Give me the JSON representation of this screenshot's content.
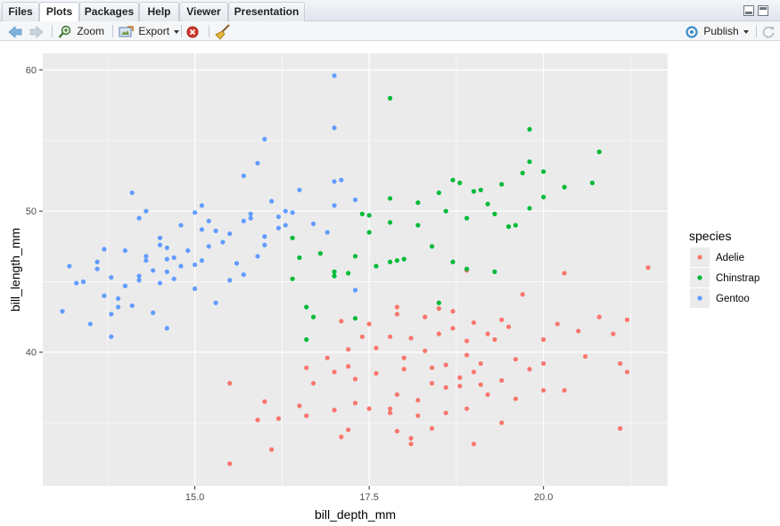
{
  "tabs": [
    {
      "label": "Files",
      "active": false
    },
    {
      "label": "Plots",
      "active": true
    },
    {
      "label": "Packages",
      "active": false
    },
    {
      "label": "Help",
      "active": false
    },
    {
      "label": "Viewer",
      "active": false
    },
    {
      "label": "Presentation",
      "active": false
    }
  ],
  "toolbar": {
    "back_icon": "arrow-left-icon",
    "forward_icon": "arrow-right-icon",
    "zoom_label": "Zoom",
    "export_label": "Export",
    "remove_icon": "remove-plot-icon",
    "clear_icon": "broom-icon",
    "publish_label": "Publish",
    "refresh_icon": "refresh-icon"
  },
  "colors": {
    "panel_bg": "#ebebeb",
    "Adelie": "#f8766d",
    "Chinstrap": "#00ba38",
    "Gentoo": "#619cff"
  },
  "chart_data": {
    "type": "scatter",
    "xlabel": "bill_depth_mm",
    "ylabel": "bill_length_mm",
    "xlim": [
      13.1,
      21.5
    ],
    "ylim": [
      32.1,
      59.6
    ],
    "xticks": [
      15.0,
      17.5,
      20.0
    ],
    "xtick_labels": [
      "15.0",
      "17.5",
      "20.0"
    ],
    "yticks": [
      40,
      50,
      60
    ],
    "ytick_labels": [
      "40",
      "50",
      "60"
    ],
    "grid": true,
    "legend": {
      "title": "species",
      "placement": "right"
    },
    "series": [
      {
        "name": "Adelie",
        "points": [
          [
            15.5,
            32.1
          ],
          [
            16.1,
            33.1
          ],
          [
            17.2,
            34.5
          ],
          [
            17.1,
            34.0
          ],
          [
            18.1,
            33.5
          ],
          [
            19.0,
            33.5
          ],
          [
            17.9,
            34.4
          ],
          [
            18.4,
            34.6
          ],
          [
            18.1,
            33.9
          ],
          [
            16.2,
            35.3
          ],
          [
            15.9,
            35.2
          ],
          [
            16.6,
            35.5
          ],
          [
            17.0,
            35.9
          ],
          [
            17.3,
            36.4
          ],
          [
            17.5,
            36.0
          ],
          [
            17.8,
            35.7
          ],
          [
            18.2,
            35.5
          ],
          [
            18.6,
            35.7
          ],
          [
            18.9,
            36.0
          ],
          [
            19.4,
            35.0
          ],
          [
            16.0,
            36.5
          ],
          [
            16.5,
            36.2
          ],
          [
            17.8,
            36.0
          ],
          [
            17.9,
            37.0
          ],
          [
            18.2,
            36.6
          ],
          [
            18.6,
            37.5
          ],
          [
            19.1,
            37.7
          ],
          [
            19.6,
            36.7
          ],
          [
            20.0,
            37.3
          ],
          [
            21.1,
            34.6
          ],
          [
            15.5,
            37.8
          ],
          [
            16.7,
            37.8
          ],
          [
            17.0,
            38.6
          ],
          [
            17.3,
            38.1
          ],
          [
            17.6,
            38.5
          ],
          [
            18.0,
            38.8
          ],
          [
            18.4,
            37.8
          ],
          [
            18.8,
            38.2
          ],
          [
            19.0,
            38.6
          ],
          [
            19.4,
            38.0
          ],
          [
            19.8,
            38.8
          ],
          [
            20.3,
            37.3
          ],
          [
            21.2,
            38.6
          ],
          [
            16.6,
            38.9
          ],
          [
            16.9,
            39.6
          ],
          [
            17.2,
            40.2
          ],
          [
            17.6,
            40.3
          ],
          [
            18.0,
            39.6
          ],
          [
            18.3,
            40.1
          ],
          [
            18.6,
            39.1
          ],
          [
            18.9,
            39.8
          ],
          [
            19.1,
            39.2
          ],
          [
            19.3,
            40.9
          ],
          [
            19.6,
            39.5
          ],
          [
            20.0,
            39.2
          ],
          [
            20.6,
            39.7
          ],
          [
            21.1,
            39.2
          ],
          [
            17.4,
            41.1
          ],
          [
            17.8,
            41.1
          ],
          [
            18.1,
            41.0
          ],
          [
            18.5,
            41.3
          ],
          [
            18.9,
            40.8
          ],
          [
            19.2,
            41.3
          ],
          [
            19.5,
            41.8
          ],
          [
            20.0,
            40.9
          ],
          [
            20.5,
            41.5
          ],
          [
            21.0,
            41.3
          ],
          [
            17.1,
            42.2
          ],
          [
            17.5,
            42.0
          ],
          [
            17.9,
            42.7
          ],
          [
            18.3,
            42.5
          ],
          [
            18.7,
            42.9
          ],
          [
            19.0,
            42.1
          ],
          [
            19.4,
            42.3
          ],
          [
            20.2,
            42.0
          ],
          [
            20.8,
            42.5
          ],
          [
            21.2,
            42.3
          ],
          [
            17.9,
            43.2
          ],
          [
            18.5,
            43.1
          ],
          [
            18.7,
            41.7
          ],
          [
            19.7,
            44.1
          ],
          [
            20.3,
            45.6
          ],
          [
            21.5,
            46.0
          ],
          [
            18.9,
            45.8
          ],
          [
            17.2,
            39.0
          ],
          [
            18.4,
            38.9
          ],
          [
            19.2,
            37.0
          ],
          [
            18.8,
            37.6
          ]
        ]
      },
      {
        "name": "Chinstrap",
        "points": [
          [
            16.6,
            40.9
          ],
          [
            16.7,
            42.5
          ],
          [
            16.6,
            43.2
          ],
          [
            17.3,
            42.4
          ],
          [
            18.5,
            43.5
          ],
          [
            16.4,
            45.2
          ],
          [
            17.0,
            45.4
          ],
          [
            17.0,
            45.7
          ],
          [
            17.2,
            45.6
          ],
          [
            17.6,
            46.1
          ],
          [
            17.8,
            46.4
          ],
          [
            18.0,
            46.6
          ],
          [
            17.3,
            46.8
          ],
          [
            16.5,
            46.7
          ],
          [
            16.8,
            47.0
          ],
          [
            17.9,
            46.5
          ],
          [
            18.7,
            46.4
          ],
          [
            18.4,
            47.5
          ],
          [
            19.3,
            45.7
          ],
          [
            18.9,
            45.9
          ],
          [
            17.5,
            48.5
          ],
          [
            17.8,
            49.2
          ],
          [
            17.4,
            49.8
          ],
          [
            18.2,
            49.0
          ],
          [
            18.6,
            50.0
          ],
          [
            18.9,
            49.5
          ],
          [
            19.2,
            50.5
          ],
          [
            19.6,
            49.0
          ],
          [
            19.3,
            49.8
          ],
          [
            19.8,
            50.2
          ],
          [
            20.0,
            51.0
          ],
          [
            20.3,
            51.7
          ],
          [
            17.8,
            50.9
          ],
          [
            18.2,
            50.6
          ],
          [
            18.5,
            51.3
          ],
          [
            18.8,
            52.0
          ],
          [
            19.1,
            51.5
          ],
          [
            19.4,
            51.9
          ],
          [
            19.7,
            52.7
          ],
          [
            19.8,
            53.5
          ],
          [
            20.0,
            52.8
          ],
          [
            20.7,
            52.0
          ],
          [
            20.8,
            54.2
          ],
          [
            19.8,
            55.8
          ],
          [
            17.8,
            58.0
          ],
          [
            18.7,
            52.2
          ],
          [
            16.4,
            48.1
          ],
          [
            17.5,
            49.7
          ],
          [
            19.5,
            48.9
          ],
          [
            19.0,
            51.4
          ]
        ]
      },
      {
        "name": "Gentoo",
        "points": [
          [
            13.1,
            42.9
          ],
          [
            13.2,
            46.1
          ],
          [
            13.3,
            44.9
          ],
          [
            13.5,
            42.0
          ],
          [
            13.7,
            44.0
          ],
          [
            13.8,
            42.7
          ],
          [
            13.8,
            41.1
          ],
          [
            13.9,
            43.8
          ],
          [
            14.1,
            43.3
          ],
          [
            14.2,
            45.1
          ],
          [
            14.3,
            46.5
          ],
          [
            14.4,
            45.8
          ],
          [
            14.5,
            44.9
          ],
          [
            14.6,
            47.4
          ],
          [
            14.7,
            45.2
          ],
          [
            14.8,
            46.1
          ],
          [
            15.0,
            44.5
          ],
          [
            15.0,
            46.2
          ],
          [
            15.1,
            48.7
          ],
          [
            15.2,
            47.5
          ],
          [
            15.3,
            43.5
          ],
          [
            15.5,
            48.4
          ],
          [
            15.6,
            46.3
          ],
          [
            15.7,
            45.5
          ],
          [
            15.8,
            49.5
          ],
          [
            15.9,
            46.8
          ],
          [
            16.0,
            48.2
          ],
          [
            16.1,
            50.7
          ],
          [
            16.2,
            49.6
          ],
          [
            16.3,
            50.0
          ],
          [
            14.0,
            47.2
          ],
          [
            14.2,
            49.5
          ],
          [
            14.3,
            50.0
          ],
          [
            14.5,
            48.1
          ],
          [
            14.6,
            46.6
          ],
          [
            14.8,
            49.0
          ],
          [
            15.0,
            49.9
          ],
          [
            15.1,
            50.4
          ],
          [
            15.2,
            49.3
          ],
          [
            15.4,
            47.8
          ],
          [
            15.7,
            49.3
          ],
          [
            15.7,
            52.5
          ],
          [
            15.9,
            53.4
          ],
          [
            16.0,
            55.1
          ],
          [
            16.4,
            49.9
          ],
          [
            16.5,
            51.5
          ],
          [
            17.0,
            52.1
          ],
          [
            17.1,
            52.2
          ],
          [
            16.9,
            48.5
          ],
          [
            17.0,
            50.4
          ],
          [
            17.3,
            50.8
          ],
          [
            17.3,
            44.4
          ],
          [
            17.0,
            55.9
          ],
          [
            17.0,
            59.6
          ],
          [
            16.7,
            49.1
          ],
          [
            16.2,
            48.8
          ],
          [
            14.1,
            51.3
          ],
          [
            13.6,
            46.4
          ],
          [
            13.4,
            45.0
          ],
          [
            14.4,
            42.8
          ],
          [
            14.6,
            41.7
          ],
          [
            15.1,
            46.5
          ],
          [
            14.9,
            47.2
          ],
          [
            16.0,
            47.6
          ],
          [
            15.5,
            45.1
          ],
          [
            15.8,
            49.8
          ],
          [
            16.3,
            49.0
          ],
          [
            15.3,
            48.6
          ],
          [
            14.7,
            46.7
          ],
          [
            14.2,
            45.4
          ],
          [
            13.9,
            43.2
          ],
          [
            13.7,
            47.3
          ],
          [
            14.0,
            44.7
          ],
          [
            14.6,
            45.7
          ],
          [
            14.3,
            46.8
          ],
          [
            14.5,
            47.6
          ],
          [
            13.8,
            45.3
          ],
          [
            13.6,
            45.9
          ]
        ]
      }
    ]
  }
}
